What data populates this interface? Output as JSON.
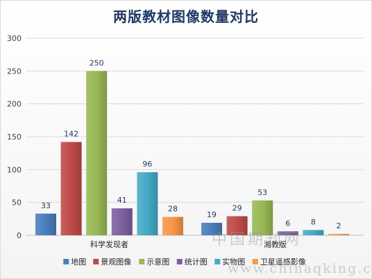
{
  "chart_data": {
    "type": "bar",
    "title": "两版教材图像数量对比",
    "categories": [
      "科学发现者",
      "湘教版"
    ],
    "series": [
      {
        "name": "地图",
        "values": [
          33,
          19
        ],
        "color": "#4a7ebb"
      },
      {
        "name": "景观图像",
        "values": [
          142,
          29
        ],
        "color": "#be4b48"
      },
      {
        "name": "示意图",
        "values": [
          250,
          53
        ],
        "color": "#98b954"
      },
      {
        "name": "统计图",
        "values": [
          41,
          6
        ],
        "color": "#7d60a0"
      },
      {
        "name": "实物图",
        "values": [
          96,
          8
        ],
        "color": "#46aac5"
      },
      {
        "name": "卫星遥感影像",
        "values": [
          28,
          2
        ],
        "color": "#f79646"
      }
    ],
    "ylim": [
      0,
      300
    ],
    "yticks": [
      0,
      50,
      100,
      150,
      200,
      250,
      300
    ],
    "grid": true,
    "legend": "bottom"
  },
  "watermark": {
    "line1": "中国期刊网",
    "line2": "www.chinaqking.com"
  }
}
